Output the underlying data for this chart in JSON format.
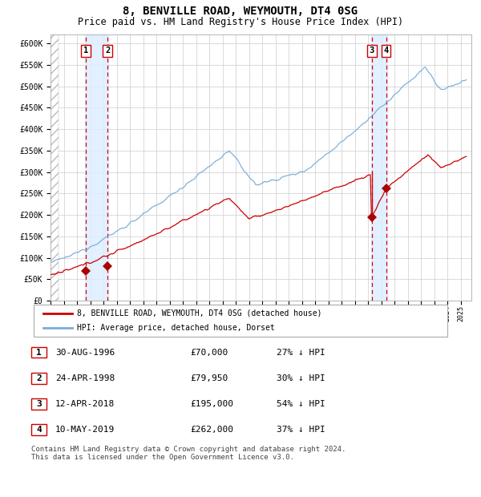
{
  "title": "8, BENVILLE ROAD, WEYMOUTH, DT4 0SG",
  "subtitle": "Price paid vs. HM Land Registry's House Price Index (HPI)",
  "ylim": [
    0,
    620000
  ],
  "yticks": [
    0,
    50000,
    100000,
    150000,
    200000,
    250000,
    300000,
    350000,
    400000,
    450000,
    500000,
    550000,
    600000
  ],
  "xlim_start": 1994.0,
  "xlim_end": 2025.8,
  "background_color": "#ffffff",
  "plot_bg_color": "#ffffff",
  "grid_color": "#cccccc",
  "hpi_line_color": "#7aaddc",
  "price_line_color": "#cc0000",
  "sale_marker_color": "#aa0000",
  "vline_color": "#dd0000",
  "vspan_color": "#ddeeff",
  "title_fontsize": 10,
  "subtitle_fontsize": 8.5,
  "transactions": [
    {
      "label": "1",
      "date_year": 1996.66,
      "price": 70000
    },
    {
      "label": "2",
      "date_year": 1998.31,
      "price": 79950
    },
    {
      "label": "3",
      "date_year": 2018.28,
      "price": 195000
    },
    {
      "label": "4",
      "date_year": 2019.36,
      "price": 262000
    }
  ],
  "table_rows": [
    {
      "num": "1",
      "date": "30-AUG-1996",
      "price": "£70,000",
      "note": "27% ↓ HPI"
    },
    {
      "num": "2",
      "date": "24-APR-1998",
      "price": "£79,950",
      "note": "30% ↓ HPI"
    },
    {
      "num": "3",
      "date": "12-APR-2018",
      "price": "£195,000",
      "note": "54% ↓ HPI"
    },
    {
      "num": "4",
      "date": "10-MAY-2019",
      "price": "£262,000",
      "note": "37% ↓ HPI"
    }
  ],
  "legend_entries": [
    "8, BENVILLE ROAD, WEYMOUTH, DT4 0SG (detached house)",
    "HPI: Average price, detached house, Dorset"
  ],
  "footnote": "Contains HM Land Registry data © Crown copyright and database right 2024.\nThis data is licensed under the Open Government Licence v3.0."
}
